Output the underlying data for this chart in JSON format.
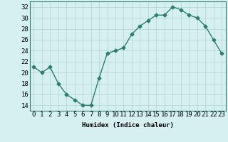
{
  "x": [
    0,
    1,
    2,
    3,
    4,
    5,
    6,
    7,
    8,
    9,
    10,
    11,
    12,
    13,
    14,
    15,
    16,
    17,
    18,
    19,
    20,
    21,
    22,
    23
  ],
  "y": [
    21,
    20,
    21,
    18,
    16,
    15,
    14,
    14,
    19,
    23.5,
    24,
    24.5,
    27,
    28.5,
    29.5,
    30.5,
    30.5,
    32,
    31.5,
    30.5,
    30,
    28.5,
    26,
    23.5
  ],
  "line_color": "#2e7d6e",
  "marker": "D",
  "marker_size": 2.5,
  "bg_color": "#d6f0f0",
  "grid_color": "#b0d4d4",
  "xlabel": "Humidex (Indice chaleur)",
  "ylim": [
    13,
    33
  ],
  "yticks": [
    14,
    16,
    18,
    20,
    22,
    24,
    26,
    28,
    30,
    32
  ],
  "xticks": [
    0,
    1,
    2,
    3,
    4,
    5,
    6,
    7,
    8,
    9,
    10,
    11,
    12,
    13,
    14,
    15,
    16,
    17,
    18,
    19,
    20,
    21,
    22,
    23
  ],
  "xlabel_fontsize": 6.5,
  "tick_fontsize": 6.5,
  "line_width": 1.0
}
